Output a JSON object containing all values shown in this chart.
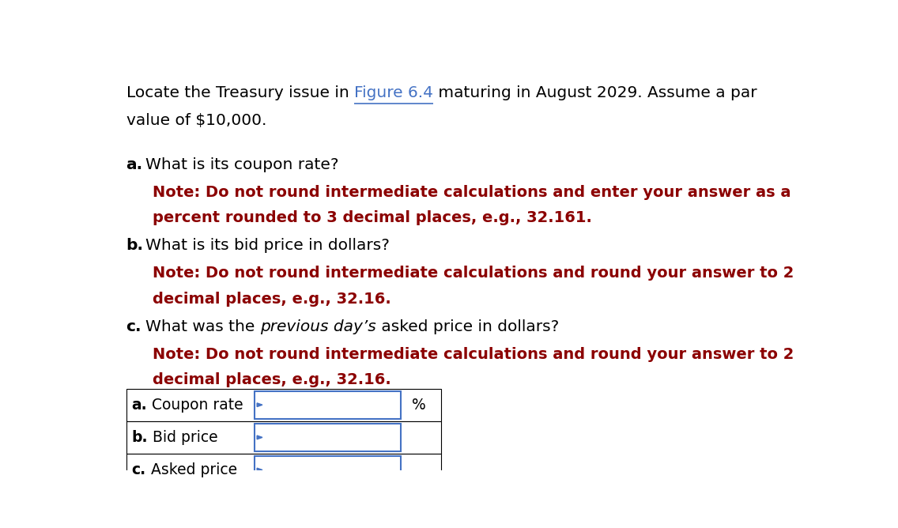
{
  "background_color": "#ffffff",
  "link_color": "#4472C4",
  "body_color": "#000000",
  "note_color": "#8B0000",
  "arrow_color": "#4472C4",
  "table_border_color": "#000000",
  "input_border_color": "#4472C4",
  "font_size_body": 14.5,
  "font_size_note": 14.0,
  "font_size_table": 13.5,
  "table_rows": [
    {
      "label_bold": "a.",
      "label_rest": " Coupon rate",
      "unit": "%"
    },
    {
      "label_bold": "b.",
      "label_rest": " Bid price",
      "unit": ""
    },
    {
      "label_bold": "c.",
      "label_rest": " Asked price",
      "unit": ""
    }
  ]
}
